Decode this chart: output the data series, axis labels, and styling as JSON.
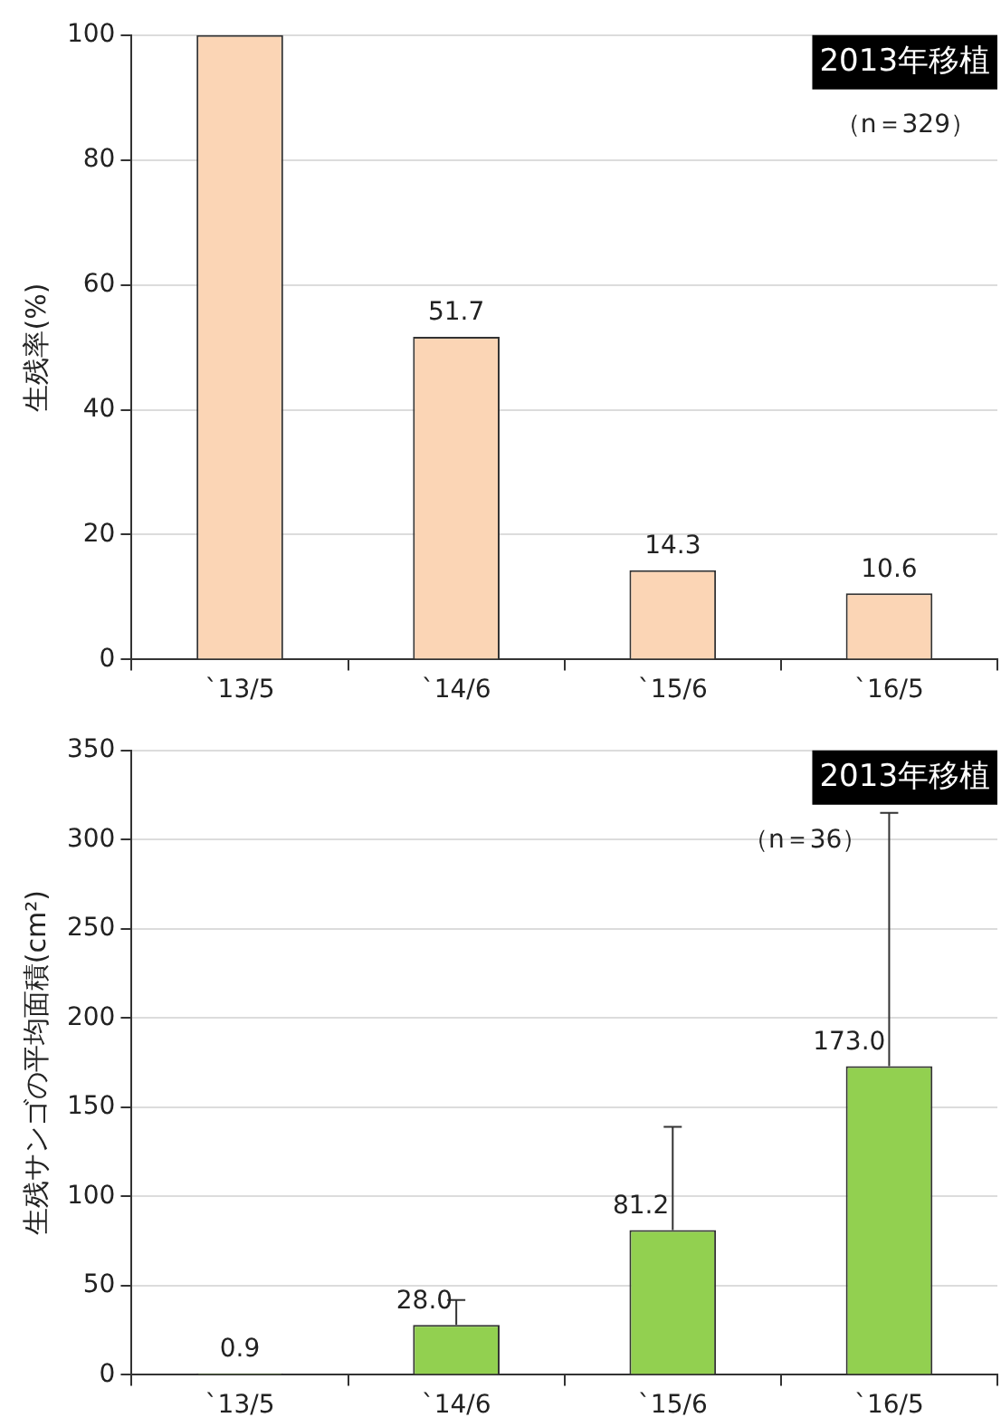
{
  "chart_data": [
    {
      "type": "bar",
      "ylabel": "生残率(%)",
      "categories": [
        "`13/5",
        "`14/6",
        "`15/6",
        "`16/5"
      ],
      "values": [
        100,
        51.7,
        14.3,
        10.6
      ],
      "color": "#fbd5b5",
      "value_labels": [
        null,
        "51.7",
        "14.3",
        "10.6"
      ],
      "ylim": [
        0,
        100
      ],
      "yticks": [
        0,
        20,
        40,
        60,
        80,
        100
      ],
      "grid": "y",
      "legend": false,
      "annotations": [
        "2013年移植",
        "（n＝329）"
      ]
    },
    {
      "type": "bar",
      "ylabel": "生残サンゴの平均面積(cm²)",
      "categories": [
        "`13/5",
        "`14/6",
        "`15/6",
        "`16/5"
      ],
      "values": [
        0.9,
        28.0,
        81.2,
        173.0
      ],
      "errors": [
        null,
        [
          28.0,
          42
        ],
        [
          81.2,
          139
        ],
        [
          173.0,
          315
        ]
      ],
      "color": "#92d050",
      "value_labels": [
        "0.9",
        "28.0",
        "81.2",
        "173.0"
      ],
      "ylim": [
        0,
        350
      ],
      "yticks": [
        0,
        50,
        100,
        150,
        200,
        250,
        300,
        350
      ],
      "grid": "y",
      "legend": false,
      "annotations": [
        "2013年移植",
        "（n＝36）"
      ]
    }
  ]
}
